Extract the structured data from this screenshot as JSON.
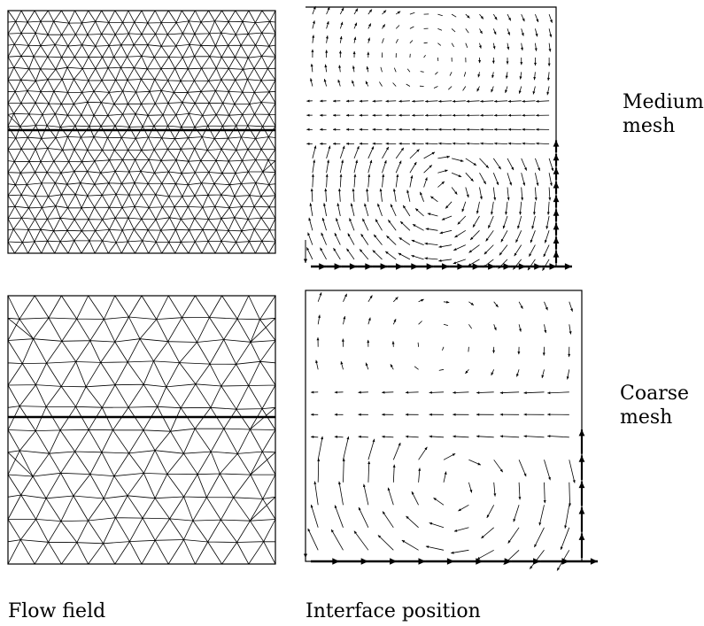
{
  "rows": [
    {
      "label_line1": "Medium",
      "label_line2": "mesh",
      "resolution": "medium"
    },
    {
      "label_line1": "Coarse",
      "label_line2": "mesh",
      "resolution": "coarse"
    }
  ],
  "captions": {
    "left": "Flow field",
    "right": "Interface position"
  },
  "colors": {
    "ink": "#000000",
    "paper": "#ffffff"
  }
}
